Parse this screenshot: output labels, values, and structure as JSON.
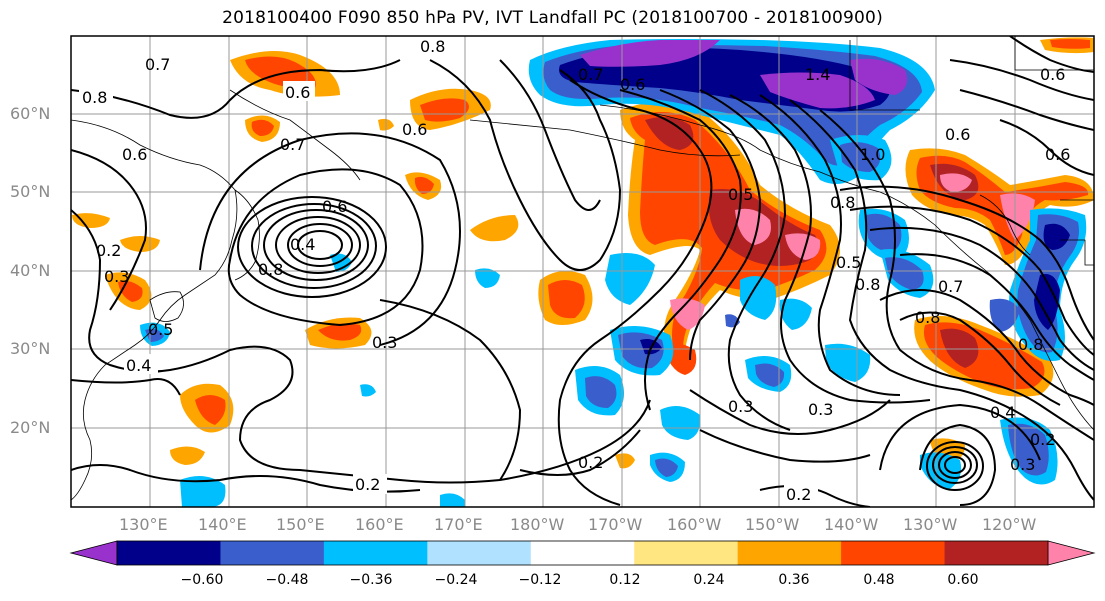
{
  "title": "2018100400 F090 850 hPa PV, IVT Landfall PC (2018100700 - 2018100900)",
  "lat_ticks": [
    "60°N",
    "50°N",
    "40°N",
    "30°N",
    "20°N"
  ],
  "lon_ticks": [
    "130°E",
    "140°E",
    "150°E",
    "160°E",
    "170°E",
    "180°W",
    "170°W",
    "160°W",
    "150°W",
    "140°W",
    "130°W",
    "120°W"
  ],
  "colorbar": {
    "colors": [
      "#9932cc",
      "#00008b",
      "#3a5fcd",
      "#00bfff",
      "#b0e2ff",
      "#ffffff",
      "#ffe680",
      "#ffa500",
      "#ff4500",
      "#b22222",
      "#ff82ab"
    ],
    "labels": [
      "−0.60",
      "−0.48",
      "−0.36",
      "−0.24",
      "−0.12",
      "0.12",
      "0.24",
      "0.36",
      "0.48",
      "0.60"
    ]
  },
  "contour_labels": [
    "0.8",
    "0.7",
    "0.6",
    "0.8",
    "0.6",
    "0.7",
    "0.8",
    "0.4",
    "0.6",
    "0.6",
    "0.5",
    "0.2",
    "0.3",
    "0.4",
    "0.3",
    "0.2",
    "0.2",
    "0.5",
    "0.6",
    "0.3",
    "0.2",
    "0.2",
    "0.4",
    "0.5",
    "0.8",
    "0.6",
    "0.7",
    "1.0",
    "1.4",
    "0.6",
    "0.6",
    "0.8",
    "0.7",
    "0.3",
    "0.3",
    "0.8",
    "0.8"
  ]
}
